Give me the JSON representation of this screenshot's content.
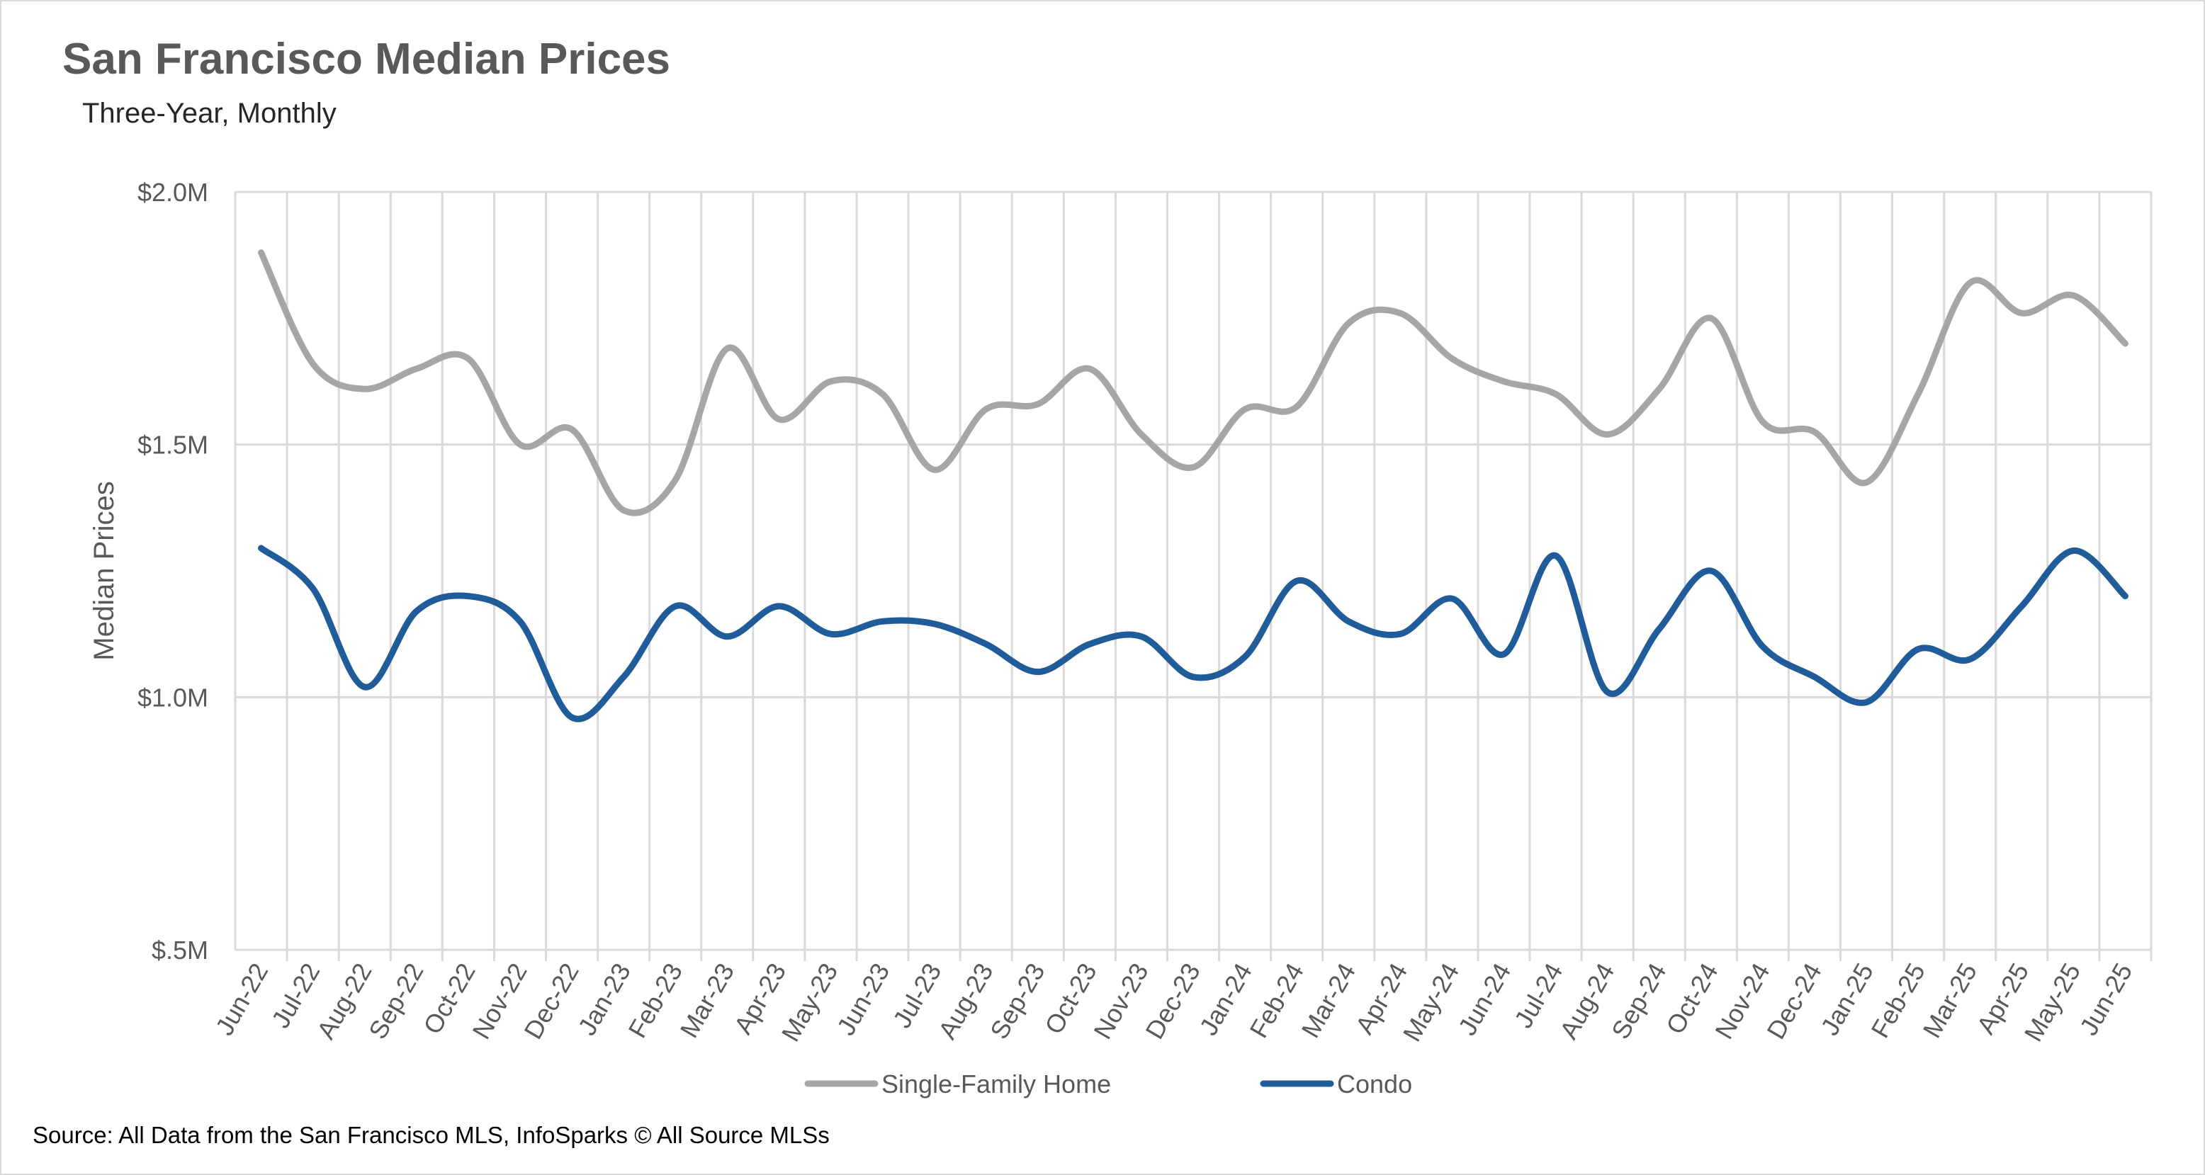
{
  "title": "San Francisco Median Prices",
  "subtitle": "Three-Year, Monthly",
  "source": "Source: All Data from the San Francisco MLS, InfoSparks © All Source MLSs",
  "colors": {
    "single_family": "#a6a6a6",
    "condo": "#1f5c99",
    "grid": "#d9d9d9",
    "text": "#595959"
  },
  "chart_data": {
    "type": "line",
    "title": "San Francisco Median Prices",
    "subtitle": "Three-Year, Monthly",
    "xlabel": "",
    "ylabel": "Median Prices",
    "ylim": [
      500000,
      2000000
    ],
    "yticks": [
      500000,
      1000000,
      1500000,
      2000000
    ],
    "ytick_labels": [
      "$.5M",
      "$1.0M",
      "$1.5M",
      "$2.0M"
    ],
    "grid": "both",
    "legend_position": "bottom",
    "categories": [
      "Jun-22",
      "Jul-22",
      "Aug-22",
      "Sep-22",
      "Oct-22",
      "Nov-22",
      "Dec-22",
      "Jan-23",
      "Feb-23",
      "Mar-23",
      "Apr-23",
      "May-23",
      "Jun-23",
      "Jul-23",
      "Aug-23",
      "Sep-23",
      "Oct-23",
      "Nov-23",
      "Dec-23",
      "Jan-24",
      "Feb-24",
      "Mar-24",
      "Apr-24",
      "May-24",
      "Jun-24",
      "Jul-24",
      "Aug-24",
      "Sep-24",
      "Oct-24",
      "Nov-24",
      "Dec-24",
      "Jan-25",
      "Feb-25",
      "Mar-25",
      "Apr-25",
      "May-25",
      "Jun-25"
    ],
    "series": [
      {
        "name": "Single-Family Home",
        "color": "#a6a6a6",
        "values": [
          1880000,
          1660000,
          1610000,
          1650000,
          1670000,
          1500000,
          1530000,
          1370000,
          1430000,
          1690000,
          1550000,
          1625000,
          1600000,
          1450000,
          1570000,
          1580000,
          1650000,
          1520000,
          1455000,
          1570000,
          1575000,
          1740000,
          1760000,
          1670000,
          1625000,
          1600000,
          1520000,
          1610000,
          1750000,
          1545000,
          1525000,
          1425000,
          1600000,
          1820000,
          1760000,
          1795000,
          1700000
        ]
      },
      {
        "name": "Condo",
        "color": "#1f5c99",
        "values": [
          1295000,
          1215000,
          1020000,
          1170000,
          1200000,
          1150000,
          960000,
          1040000,
          1180000,
          1120000,
          1180000,
          1125000,
          1150000,
          1145000,
          1105000,
          1050000,
          1105000,
          1120000,
          1040000,
          1080000,
          1230000,
          1150000,
          1125000,
          1195000,
          1085000,
          1280000,
          1010000,
          1135000,
          1250000,
          1100000,
          1040000,
          990000,
          1095000,
          1075000,
          1180000,
          1290000,
          1200000
        ]
      }
    ]
  }
}
